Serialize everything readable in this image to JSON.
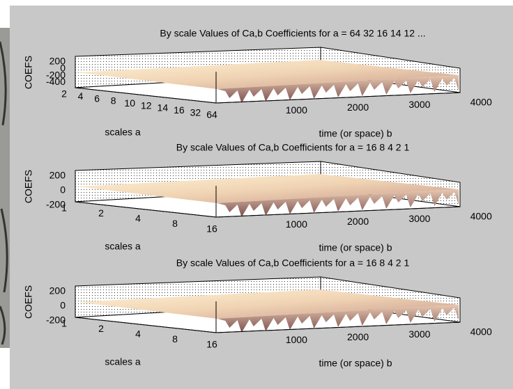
{
  "panels": [
    {
      "title": "By scale Values of Ca,b Coefficients for a =  64 32 16 14 12 ...",
      "zlabel": "COEFS",
      "zticks": [
        200,
        0,
        -200,
        -400
      ],
      "scale_ticks": [
        2,
        4,
        6,
        8,
        10,
        12,
        14,
        16,
        32,
        64
      ],
      "time_ticks": [
        1000,
        2000,
        3000,
        4000
      ],
      "scale_label": "scales a",
      "time_label": "time (or space) b"
    },
    {
      "title": "By scale Values of Ca,b Coefficients for a =  16 8 4 2 1",
      "zlabel": "COEFS",
      "zticks": [
        200,
        0,
        -200
      ],
      "scale_ticks": [
        1,
        2,
        4,
        8,
        16
      ],
      "time_ticks": [
        1000,
        2000,
        3000,
        4000
      ],
      "scale_label": "scales a",
      "time_label": "time (or space) b"
    },
    {
      "title": "By scale Values of Ca,b Coefficients for a =  16 8 4 2 1",
      "zlabel": "COEFS",
      "zticks": [
        200,
        0,
        -200
      ],
      "scale_ticks": [
        1,
        2,
        4,
        8,
        16
      ],
      "time_ticks": [
        1000,
        2000,
        3000,
        4000
      ],
      "scale_label": "scales a",
      "time_label": "time (or space) b"
    }
  ]
}
